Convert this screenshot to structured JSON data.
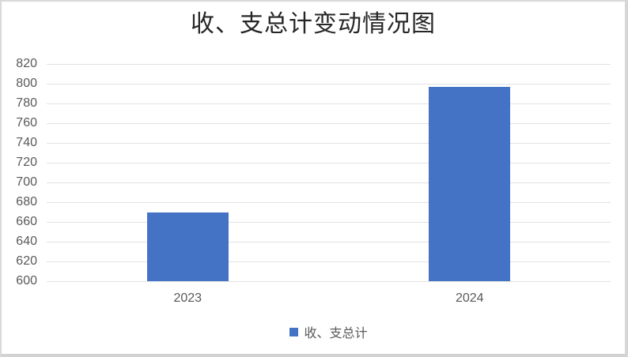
{
  "chart_data": {
    "type": "bar",
    "title": "收、支总计变动情况图",
    "categories": [
      "2023",
      "2024"
    ],
    "series": [
      {
        "name": "收、支总计",
        "values": [
          670,
          797
        ]
      }
    ],
    "xlabel": "",
    "ylabel": "",
    "ylim": [
      600,
      820
    ],
    "ytick_step": 20,
    "ytick_labels": [
      "600",
      "620",
      "640",
      "660",
      "680",
      "700",
      "720",
      "740",
      "760",
      "780",
      "800",
      "820"
    ],
    "grid": true,
    "gridlines": "horizontal",
    "legend_position": "bottom",
    "bar_color": "#4472C4"
  },
  "colors": {
    "bar_fill": "#4472C4",
    "gridline": "#E2E2E2",
    "axis_label_text": "#595959",
    "title_text": "#262626",
    "frame_border": "#D9D9D9",
    "background": "#FFFFFF"
  }
}
